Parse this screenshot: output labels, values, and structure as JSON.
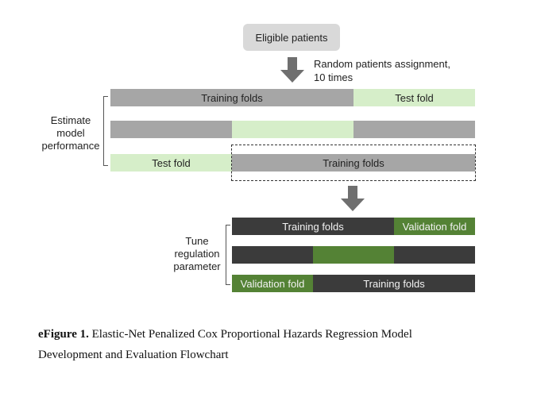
{
  "diagram": {
    "start_box": "Eligible patients",
    "assignment_note_line1": "Random patients assignment,",
    "assignment_note_line2": "10 times",
    "outer_cv": {
      "label_line1": "Estimate",
      "label_line2": "model",
      "label_line3": "performance",
      "row1": {
        "training": "Training folds",
        "test": "Test fold"
      },
      "row3": {
        "test": "Test fold",
        "training": "Training folds"
      }
    },
    "inner_cv": {
      "label_line1": "Tune",
      "label_line2": "regulation",
      "label_line3": "parameter",
      "row1": {
        "training": "Training folds",
        "validation": "Validation fold"
      },
      "row3": {
        "validation": "Validation fold",
        "training": "Training folds"
      }
    },
    "colors": {
      "outer_training": "#a6a6a6",
      "outer_test": "#d6eec9",
      "inner_training": "#3b3b3b",
      "inner_validation": "#548235",
      "arrow": "#6f6f6f",
      "start_box": "#d9d9d9"
    }
  },
  "caption": {
    "label": "eFigure 1.",
    "text_line1": "Elastic-Net Penalized Cox Proportional Hazards Regression Model",
    "text_line2": "Development and Evaluation Flowchart"
  }
}
